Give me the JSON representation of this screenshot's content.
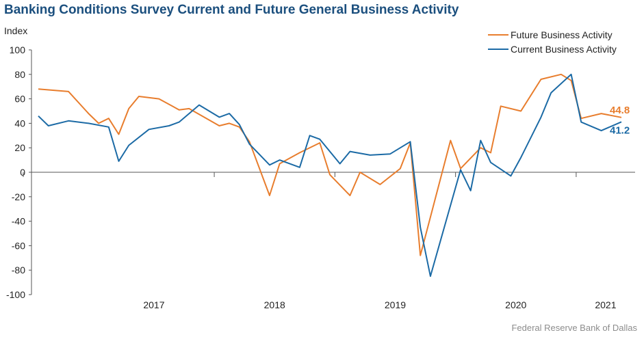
{
  "title": "Banking Conditions Survey Current and Future General Business Activity",
  "source": "Federal Reserve Bank of Dallas",
  "chart_data": {
    "type": "line",
    "title": "Banking Conditions Survey Current and Future General Business Activity",
    "ylabel": "Index",
    "xlabel": "",
    "ylim": [
      -100,
      100
    ],
    "yticks": [
      100,
      80,
      60,
      40,
      20,
      0,
      -20,
      -40,
      -60,
      -80,
      -100
    ],
    "year_labels": [
      "2017",
      "2018",
      "2019",
      "2020",
      "2021"
    ],
    "grid": false,
    "legend": "top-right",
    "x": [
      "2016-07",
      "2016-08",
      "2016-09",
      "2016-10",
      "2016-11",
      "2016-12",
      "2017-01",
      "2017-02",
      "2017-03",
      "2017-04",
      "2017-05",
      "2017-06",
      "2017-07",
      "2017-08",
      "2017-09",
      "2017-10",
      "2017-11",
      "2017-12",
      "2018-01",
      "2018-02",
      "2018-03",
      "2018-04",
      "2018-05",
      "2018-06",
      "2018-07",
      "2018-08",
      "2018-09",
      "2018-10",
      "2018-11",
      "2018-12",
      "2019-01",
      "2019-02",
      "2019-03",
      "2019-04",
      "2019-05",
      "2019-06",
      "2019-07",
      "2019-08",
      "2019-09",
      "2019-10",
      "2019-11",
      "2019-12",
      "2020-01",
      "2020-02",
      "2020-03",
      "2020-04",
      "2020-05",
      "2020-06",
      "2020-07",
      "2020-08",
      "2020-09",
      "2020-10",
      "2020-11",
      "2020-12",
      "2021-01",
      "2021-02",
      "2021-03",
      "2021-04",
      "2021-05"
    ],
    "series": [
      {
        "name": "Future Business Activity",
        "color": "#e87d2d",
        "end_label": "44.8",
        "points": [
          [
            "2016-07",
            68
          ],
          [
            "2016-10",
            66
          ],
          [
            "2016-12",
            48
          ],
          [
            "2017-01",
            40
          ],
          [
            "2017-02",
            44
          ],
          [
            "2017-03",
            31
          ],
          [
            "2017-04",
            52
          ],
          [
            "2017-05",
            62
          ],
          [
            "2017-07",
            60
          ],
          [
            "2017-09",
            51
          ],
          [
            "2017-10",
            52
          ],
          [
            "2018-01",
            38
          ],
          [
            "2018-02",
            40
          ],
          [
            "2018-03",
            37
          ],
          [
            "2018-04",
            25
          ],
          [
            "2018-06",
            -19
          ],
          [
            "2018-07",
            7
          ],
          [
            "2018-09",
            16
          ],
          [
            "2018-11",
            24
          ],
          [
            "2018-12",
            -2
          ],
          [
            "2019-02",
            -19
          ],
          [
            "2019-03",
            0
          ],
          [
            "2019-05",
            -10
          ],
          [
            "2019-07",
            3
          ],
          [
            "2019-08",
            24
          ],
          [
            "2019-09",
            -68
          ],
          [
            "2019-12",
            26
          ],
          [
            "2020-01",
            3
          ],
          [
            "2020-03",
            20
          ],
          [
            "2020-04",
            16
          ],
          [
            "2020-05",
            54
          ],
          [
            "2020-07",
            50
          ],
          [
            "2020-09",
            76
          ],
          [
            "2020-11",
            80
          ],
          [
            "2020-12",
            75
          ],
          [
            "2021-01",
            44
          ],
          [
            "2021-03",
            48
          ],
          [
            "2021-05",
            44.8
          ]
        ]
      },
      {
        "name": "Current Business Activity",
        "color": "#1b6aa5",
        "end_label": "41.2",
        "points": [
          [
            "2016-07",
            46
          ],
          [
            "2016-08",
            38
          ],
          [
            "2016-10",
            42
          ],
          [
            "2016-12",
            40
          ],
          [
            "2017-02",
            37
          ],
          [
            "2017-03",
            9
          ],
          [
            "2017-04",
            22
          ],
          [
            "2017-06",
            35
          ],
          [
            "2017-08",
            38
          ],
          [
            "2017-09",
            41
          ],
          [
            "2017-11",
            55
          ],
          [
            "2018-01",
            45
          ],
          [
            "2018-02",
            48
          ],
          [
            "2018-03",
            39
          ],
          [
            "2018-04",
            23
          ],
          [
            "2018-06",
            6
          ],
          [
            "2018-07",
            10
          ],
          [
            "2018-09",
            4
          ],
          [
            "2018-10",
            30
          ],
          [
            "2018-11",
            27
          ],
          [
            "2019-01",
            7
          ],
          [
            "2019-02",
            17
          ],
          [
            "2019-04",
            14
          ],
          [
            "2019-06",
            15
          ],
          [
            "2019-08",
            25
          ],
          [
            "2019-09",
            -45
          ],
          [
            "2019-10",
            -85
          ],
          [
            "2020-01",
            2
          ],
          [
            "2020-02",
            -15
          ],
          [
            "2020-03",
            26
          ],
          [
            "2020-04",
            8
          ],
          [
            "2020-06",
            -3
          ],
          [
            "2020-07",
            12
          ],
          [
            "2020-09",
            45
          ],
          [
            "2020-10",
            65
          ],
          [
            "2020-12",
            80
          ],
          [
            "2021-01",
            41
          ],
          [
            "2021-03",
            34
          ],
          [
            "2021-05",
            41.2
          ]
        ]
      }
    ]
  }
}
